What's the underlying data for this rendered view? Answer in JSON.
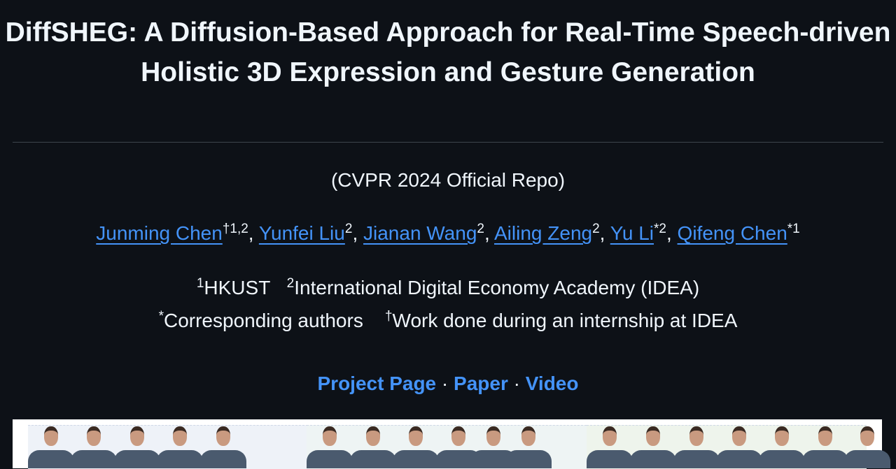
{
  "title": "DiffSHEG: A Diffusion-Based Approach for Real-Time Speech-driven Holistic 3D Expression and Gesture Generation",
  "subtitle": "(CVPR 2024 Official Repo)",
  "authors": [
    {
      "name": "Junming Chen",
      "sup": "†1,2"
    },
    {
      "name": "Yunfei Liu",
      "sup": "2"
    },
    {
      "name": "Jianan Wang",
      "sup": "2"
    },
    {
      "name": "Ailing Zeng",
      "sup": "2"
    },
    {
      "name": "Yu Li",
      "sup": "*2"
    },
    {
      "name": "Qifeng Chen",
      "sup": "*1"
    }
  ],
  "affiliations": [
    {
      "sup": "1",
      "name": "HKUST"
    },
    {
      "sup": "2",
      "name": "International Digital Economy Academy (IDEA)"
    }
  ],
  "notes": [
    {
      "sup": "*",
      "text": "Corresponding authors"
    },
    {
      "sup": "†",
      "text": "Work done during an internship at IDEA"
    }
  ],
  "links": [
    "Project Page",
    "Paper",
    "Video"
  ],
  "separator": "·",
  "colors": {
    "background": "#0d1117",
    "text": "#f0f6fc",
    "link": "#4493f8"
  }
}
